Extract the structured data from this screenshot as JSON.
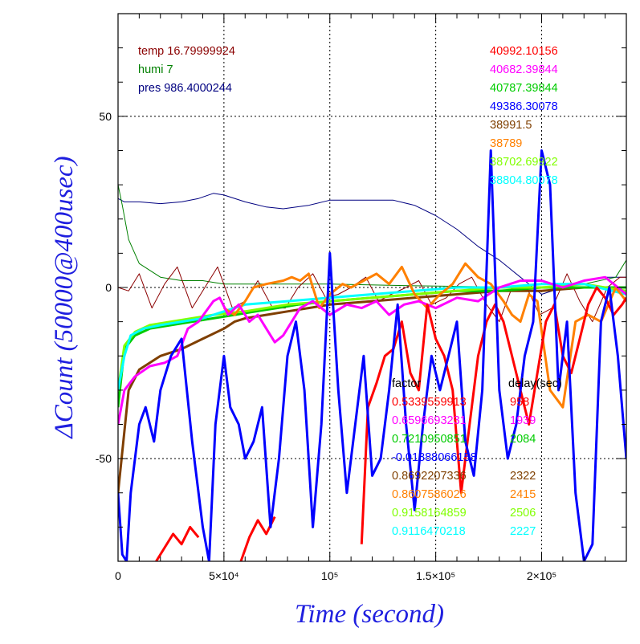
{
  "chart_data": {
    "type": "line",
    "xlabel": "Time (second)",
    "ylabel": "ΔCount (50000@400usec)",
    "xlim": [
      0,
      240000
    ],
    "ylim": [
      -80,
      80
    ],
    "x_ticks": [
      {
        "value": 0,
        "label": "0"
      },
      {
        "value": 50000,
        "label": "5×10⁴"
      },
      {
        "value": 100000,
        "label": "10⁵"
      },
      {
        "value": 150000,
        "label": "1.5×10⁵"
      },
      {
        "value": 200000,
        "label": "2×10⁵"
      }
    ],
    "y_ticks": [
      {
        "value": -50,
        "label": "-50"
      },
      {
        "value": 0,
        "label": "0"
      },
      {
        "value": 50,
        "label": "50"
      }
    ],
    "grid": true,
    "environment_labels": [
      {
        "text": "temp 16.79999924",
        "color": "#8b0000"
      },
      {
        "text": "humi 7",
        "color": "#008000"
      },
      {
        "text": "pres 986.4000244",
        "color": "#000080"
      }
    ],
    "count_labels": [
      {
        "text": "40992.10156",
        "color": "#ff0000"
      },
      {
        "text": "40682.39844",
        "color": "#ff00ff"
      },
      {
        "text": "40787.39844",
        "color": "#00cc00"
      },
      {
        "text": "49386.30078",
        "color": "#0000ff"
      },
      {
        "text": "38991.5",
        "color": "#7f3f00"
      },
      {
        "text": "38789",
        "color": "#ff8000"
      },
      {
        "text": "38702.69922",
        "color": "#80ff00"
      },
      {
        "text": "38804.80078",
        "color": "#00ffff"
      }
    ],
    "factor_header": "factor",
    "delay_header": "delay(sec)",
    "factor_rows": [
      {
        "factor": "0.5339559913",
        "delay": "958",
        "color": "#ff0000"
      },
      {
        "factor": "0.6596693231",
        "delay": "1939",
        "color": "#ff00ff"
      },
      {
        "factor": "0.7210950851",
        "delay": "2084",
        "color": "#00cc00"
      },
      {
        "factor": "-0.01888066158",
        "delay": "",
        "color": "#0000ff"
      },
      {
        "factor": "0.8692207336",
        "delay": "2322",
        "color": "#7f3f00"
      },
      {
        "factor": "0.8607586026",
        "delay": "2415",
        "color": "#ff8000"
      },
      {
        "factor": "0.9158164859",
        "delay": "2506",
        "color": "#80ff00"
      },
      {
        "factor": "0.9116470218",
        "delay": "2227",
        "color": "#00ffff"
      }
    ],
    "series": [
      {
        "color": "#000080",
        "x": [
          0,
          3000,
          10000,
          20000,
          30000,
          38000,
          45000,
          50000,
          60000,
          70000,
          78000,
          90000,
          100000,
          110000,
          120000,
          130000,
          140000,
          150000,
          160000,
          170000,
          180000,
          190000,
          200000,
          210000,
          220000,
          230000,
          240000
        ],
        "y": [
          26,
          25,
          25,
          24.5,
          25,
          26,
          27.5,
          27,
          25,
          23.5,
          23,
          24,
          25.5,
          25.5,
          25.5,
          25.5,
          24,
          21,
          17,
          12,
          8,
          3,
          -2,
          0,
          2,
          3,
          3
        ]
      },
      {
        "color": "#008000",
        "x": [
          0,
          2000,
          5000,
          10000,
          20000,
          30000,
          40000,
          50000,
          60000,
          80000,
          100000,
          140000,
          200000,
          220000,
          235000,
          240000
        ],
        "y": [
          30,
          24,
          14,
          7,
          3,
          2,
          2,
          1,
          1,
          1,
          1,
          0.5,
          0,
          1,
          3,
          8
        ]
      },
      {
        "color": "#8b0000",
        "x": [
          0,
          5000,
          10000,
          16000,
          22000,
          28000,
          35000,
          41000,
          47000,
          54000,
          60000,
          66000,
          73000,
          79000,
          85000,
          92000,
          98000,
          104000,
          110000,
          117000,
          123000,
          129000,
          136000,
          142000,
          148000,
          155000,
          161000,
          167000,
          174000,
          180000,
          186000,
          193000,
          199000,
          205000,
          212000,
          218000,
          224000,
          231000,
          237000,
          240000
        ],
        "y": [
          0,
          -1,
          4,
          -6,
          1,
          6,
          -6,
          0,
          6,
          -6,
          -4,
          2,
          -6,
          -6,
          0,
          4,
          -3,
          -2,
          0,
          3,
          -4,
          -2,
          0,
          2,
          -5,
          -3,
          1,
          3,
          -5,
          -10,
          0,
          0,
          -8,
          -6,
          4,
          -4,
          -10,
          0,
          3,
          3
        ]
      },
      {
        "color": "#7f3f00",
        "x": [
          0,
          5000,
          10000,
          15000,
          20000,
          30000,
          40000,
          50000,
          55000,
          60000,
          70000,
          80000,
          90000,
          100000,
          120000,
          140000,
          160000,
          180000,
          200000,
          220000,
          240000
        ],
        "y": [
          -60,
          -30,
          -24,
          -22,
          -20,
          -18,
          -15,
          -12,
          -10,
          -9,
          -8,
          -7,
          -6,
          -5,
          -4,
          -3,
          -2,
          -1,
          -1,
          0,
          0
        ]
      },
      {
        "color": "#00cc00",
        "x": [
          0,
          3000,
          8000,
          15000,
          25000,
          35000,
          45000,
          55000,
          65000,
          75000,
          85000,
          100000,
          120000,
          140000,
          160000,
          180000,
          200000,
          220000,
          240000
        ],
        "y": [
          -35,
          -18,
          -14,
          -12,
          -11,
          -10,
          -9,
          -8,
          -7,
          -6,
          -5,
          -4,
          -3,
          -2,
          -1,
          -1,
          0,
          0,
          0
        ]
      },
      {
        "color": "#80ff00",
        "x": [
          0,
          3000,
          8000,
          15000,
          25000,
          35000,
          45000,
          60000,
          80000,
          100000,
          120000,
          140000,
          160000,
          180000,
          200000,
          220000,
          240000
        ],
        "y": [
          -30,
          -17,
          -13,
          -11,
          -10,
          -9,
          -8,
          -7,
          -5,
          -4,
          -3,
          -2,
          -1,
          0,
          0,
          1,
          -1
        ]
      },
      {
        "color": "#00ffff",
        "x": [
          0,
          3000,
          6000,
          12000,
          20000,
          30000,
          40000,
          50000,
          60000,
          80000,
          100000,
          120000,
          140000,
          160000,
          180000,
          200000,
          220000,
          240000
        ],
        "y": [
          -30,
          -20,
          -14,
          -12,
          -11,
          -10,
          -9,
          -7,
          -5,
          -4,
          -3,
          -2,
          -1,
          0,
          0,
          1,
          1,
          -2
        ]
      },
      {
        "color": "#ff8000",
        "x": [
          50000,
          55000,
          60000,
          64000,
          70000,
          78000,
          82000,
          86000,
          90000,
          95000,
          100000,
          106000,
          110000,
          116000,
          122000,
          128000,
          134000,
          140000,
          146000,
          152000,
          158000,
          164000,
          170000,
          176000,
          182000,
          186000,
          190000,
          194000,
          198000,
          204000,
          210000,
          216000,
          222000,
          228000,
          235000,
          240000
        ],
        "y": [
          -6,
          -8,
          -4,
          0,
          1,
          2,
          3,
          2,
          4,
          -6,
          -2,
          1,
          0,
          2,
          4,
          1,
          6,
          -2,
          -6,
          -2,
          1,
          7,
          3,
          1,
          -4,
          -8,
          -10,
          -2,
          -4,
          -30,
          -35,
          -10,
          -8,
          -10,
          0,
          -4
        ]
      },
      {
        "color": "#ff00ff",
        "x": [
          0,
          3000,
          8000,
          15000,
          22000,
          28000,
          33000,
          38000,
          45000,
          48000,
          52000,
          57000,
          62000,
          66000,
          70000,
          74000,
          78000,
          82000,
          86000,
          92000,
          100000,
          108000,
          115000,
          122000,
          128000,
          135000,
          142000,
          150000,
          160000,
          170000,
          180000,
          190000,
          200000,
          210000,
          220000,
          230000,
          240000
        ],
        "y": [
          -40,
          -30,
          -26,
          -23,
          -22,
          -20,
          -12,
          -10,
          -4,
          -3,
          -8,
          -5,
          -10,
          -8,
          -12,
          -16,
          -14,
          -10,
          -6,
          -4,
          -8,
          -5,
          -6,
          -4,
          -8,
          -5,
          -4,
          -6,
          -3,
          -4,
          0,
          2,
          2,
          0,
          2,
          3,
          -2
        ]
      },
      {
        "color": "#ff0000",
        "x": [
          115000,
          118000,
          122000,
          126000,
          130000,
          134000,
          138000,
          142000,
          146000,
          150000,
          154000,
          158000,
          162000,
          166000,
          170000,
          174000,
          178000,
          182000,
          186000,
          190000,
          194000,
          198000,
          202000,
          206000,
          210000,
          214000,
          218000,
          222000,
          226000,
          230000,
          234000,
          238000,
          240000
        ],
        "y": [
          -75,
          -35,
          -28,
          -20,
          -18,
          -10,
          -25,
          -30,
          -5,
          -15,
          -20,
          -30,
          -60,
          -40,
          -20,
          -10,
          -5,
          -10,
          -20,
          -30,
          -40,
          -25,
          -10,
          -5,
          -20,
          -25,
          -15,
          -5,
          0,
          -3,
          -8,
          -5,
          -3
        ]
      },
      {
        "color": "#ff0000",
        "x": [
          18000,
          22000,
          26000,
          30000,
          34000,
          38000
        ],
        "y": [
          -80,
          -76,
          -72,
          -75,
          -70,
          -73
        ]
      },
      {
        "color": "#ff0000",
        "x": [
          58000,
          62000,
          66000,
          70000,
          74000
        ],
        "y": [
          -80,
          -73,
          -68,
          -72,
          -67
        ]
      },
      {
        "color": "#0000ff",
        "x": [
          0,
          2000,
          4000,
          6000,
          10000,
          13000,
          17000,
          20000,
          25000,
          30000,
          35000,
          40000,
          43000,
          46000,
          50000,
          53000,
          57000,
          60000,
          64000,
          68000,
          72000,
          76000,
          80000,
          84000,
          88000,
          92000,
          96000,
          100000,
          104000,
          108000,
          112000,
          116000,
          120000,
          124000,
          128000,
          132000,
          136000,
          140000,
          144000,
          148000,
          152000,
          156000,
          160000,
          164000,
          168000,
          172000,
          176000,
          180000,
          184000,
          188000,
          192000,
          196000,
          200000,
          204000,
          208000,
          212000,
          216000,
          220000,
          224000,
          228000,
          232000,
          236000,
          240000
        ],
        "y": [
          -60,
          -78,
          -80,
          -60,
          -40,
          -35,
          -45,
          -30,
          -20,
          -15,
          -45,
          -70,
          -80,
          -40,
          -20,
          -35,
          -40,
          -50,
          -45,
          -35,
          -70,
          -50,
          -20,
          -10,
          -30,
          -70,
          -40,
          10,
          -30,
          -60,
          -40,
          -20,
          -55,
          -50,
          -30,
          -5,
          -40,
          -65,
          -40,
          -20,
          -30,
          -20,
          -10,
          -45,
          -55,
          -30,
          40,
          -30,
          -50,
          -40,
          -20,
          -10,
          40,
          30,
          -30,
          -10,
          -60,
          -80,
          -75,
          -10,
          0,
          -20,
          -50
        ]
      }
    ]
  }
}
